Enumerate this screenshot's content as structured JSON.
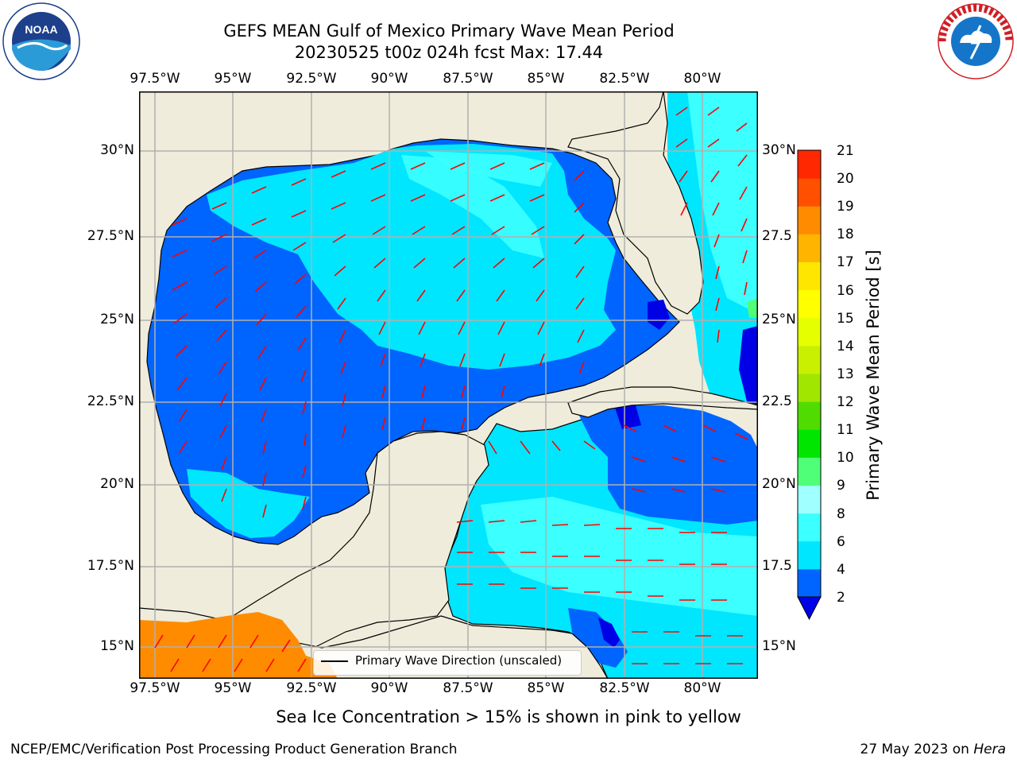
{
  "header": {
    "title_line1": "GEFS MEAN Gulf of Mexico Primary Wave Mean Period",
    "title_line2": "20230525 t00z 024h fcst   Max: 17.44"
  },
  "logos": {
    "left": {
      "name": "noaa-logo",
      "text": "NOAA"
    },
    "right": {
      "name": "national-weather-service-logo",
      "text": "NATIONAL WEATHER SERVICE"
    }
  },
  "map": {
    "lon_labels": [
      "97.5°W",
      "95°W",
      "92.5°W",
      "90°W",
      "87.5°W",
      "85°W",
      "82.5°W",
      "80°W"
    ],
    "lat_labels_left": [
      "30°N",
      "27.5°N",
      "25°N",
      "22.5°N",
      "20°N",
      "17.5°N",
      "15°N"
    ],
    "lat_labels_right": [
      "30°N",
      "27.5",
      "25°N",
      "22.5",
      "20°N",
      "17.5",
      "15°N"
    ],
    "land_color": "#efecdb",
    "arrow_color": "#ff0000",
    "legend_label": "Primary Wave Direction (unscaled)"
  },
  "colorbar": {
    "label": "Primary Wave Mean Period [s]",
    "ticks": [
      "2",
      "4",
      "6",
      "8",
      "9",
      "10",
      "11",
      "12",
      "13",
      "14",
      "15",
      "16",
      "17",
      "18",
      "19",
      "20",
      "21"
    ],
    "colors": [
      "#0064ff",
      "#00e6ff",
      "#3cffff",
      "#a0ffff",
      "#50ff78",
      "#00e600",
      "#50dc00",
      "#a0e600",
      "#c8f000",
      "#e6ff00",
      "#ffff00",
      "#ffe600",
      "#ffb400",
      "#ff8c00",
      "#ff5000",
      "#ff2800"
    ],
    "extend_color": "#0000e6"
  },
  "footer": {
    "subtitle": "Sea Ice Concentration > 15% is shown in pink to yellow",
    "left": "NCEP/EMC/Verification Post Processing Product Generation Branch",
    "right_date": "27 May 2023 on",
    "right_machine": "Hera"
  }
}
